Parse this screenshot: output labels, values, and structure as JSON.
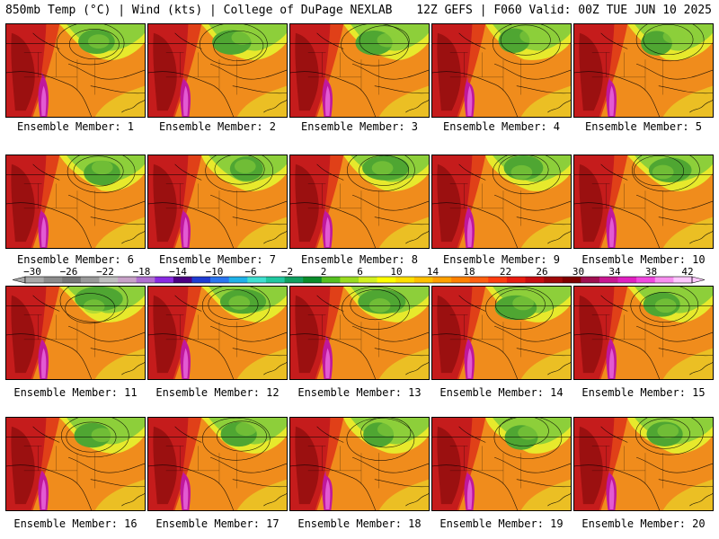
{
  "header": {
    "left": "850mb Temp (°C) | Wind (kts) | College of DuPage NEXLAB",
    "right": "12Z GEFS | F060 Valid: 00Z TUE JUN 10 2025"
  },
  "members": [
    "Ensemble Member: 1",
    "Ensemble Member: 2",
    "Ensemble Member: 3",
    "Ensemble Member: 4",
    "Ensemble Member: 5",
    "Ensemble Member: 6",
    "Ensemble Member: 7",
    "Ensemble Member: 8",
    "Ensemble Member: 9",
    "Ensemble Member: 10",
    "Ensemble Member: 11",
    "Ensemble Member: 12",
    "Ensemble Member: 13",
    "Ensemble Member: 14",
    "Ensemble Member: 15",
    "Ensemble Member: 16",
    "Ensemble Member: 17",
    "Ensemble Member: 18",
    "Ensemble Member: 19",
    "Ensemble Member: 20"
  ],
  "colorbar": {
    "labels": [
      "−30",
      "−26",
      "−22",
      "−18",
      "−14",
      "−10",
      "−6",
      "−2",
      "2",
      "6",
      "10",
      "14",
      "18",
      "22",
      "26",
      "30",
      "34",
      "38",
      "42"
    ],
    "colors": [
      "#a9a9a9",
      "#8c8c8c",
      "#777777",
      "#9a9a9a",
      "#bfbfbf",
      "#c8a2c8",
      "#b070d0",
      "#8a2be2",
      "#4b0082",
      "#1e3cd2",
      "#2a76f0",
      "#20b2e8",
      "#40e0d0",
      "#20c8a0",
      "#10a060",
      "#0a8c2a",
      "#55c020",
      "#9adc20",
      "#d2f020",
      "#ffff00",
      "#ffe000",
      "#ffc000",
      "#ffa000",
      "#ff8000",
      "#ff6010",
      "#ff3c10",
      "#e81c10",
      "#c80c10",
      "#a00808",
      "#800000",
      "#a01050",
      "#c81890",
      "#e020c0",
      "#f048e0",
      "#f890f0",
      "#ffc8ff"
    ]
  },
  "colors": {
    "green": "#4fa632",
    "lightgreen": "#8dcf3a",
    "yellow": "#e7e92c",
    "orange": "#f08c1c",
    "redorange": "#e04018",
    "red": "#c51c1c",
    "darkred": "#9b1010",
    "magenta": "#c0189c",
    "pink": "#e35ad2"
  }
}
